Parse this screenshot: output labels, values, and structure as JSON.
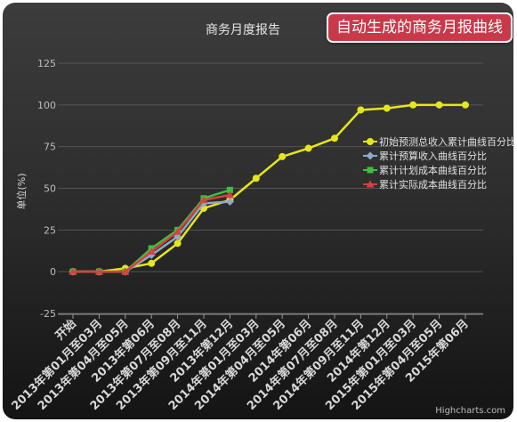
{
  "badge": {
    "text": "自动生成的商务月报曲线"
  },
  "credit": "Highcharts.com",
  "colors": {
    "accent": "#c8394a",
    "initial": "#e6e61a",
    "budget": "#8fa9c9",
    "plan": "#3fbf3f",
    "actual": "#d94040"
  },
  "chart_data": {
    "type": "line",
    "title": "商务月度报告",
    "xlabel": "",
    "ylabel": "单位(%)",
    "ylim": [
      -25,
      125
    ],
    "yticks": [
      -25,
      0,
      25,
      50,
      75,
      100,
      125
    ],
    "grid": true,
    "legend_position": "right",
    "categories": [
      "开始",
      "2013年第01月至03月",
      "2013年第04月至05月",
      "2013年第06月",
      "2013年第07月至08月",
      "2013年第09月至11月",
      "2013年第12月",
      "2014年第01月至03月",
      "2014年第04月至05月",
      "2014年第06月",
      "2014年第07月至08月",
      "2014年第09月至11月",
      "2014年第12月",
      "2015年第01月至03月",
      "2015年第04月至05月",
      "2015年第06月"
    ],
    "series": [
      {
        "name": "初始预测总收入累计曲线百分比",
        "color": "#e6e61a",
        "marker": "circle",
        "values": [
          0,
          0,
          2,
          5,
          17,
          38,
          43,
          56,
          69,
          74,
          80,
          97,
          98,
          100,
          100,
          100
        ]
      },
      {
        "name": "累计预算收入曲线百分比",
        "color": "#8fa9c9",
        "marker": "diamond",
        "values": [
          0,
          0,
          0,
          10,
          21,
          41,
          42,
          null,
          null,
          null,
          null,
          null,
          null,
          null,
          null,
          null
        ]
      },
      {
        "name": "累计计划成本曲线百分比",
        "color": "#3fbf3f",
        "marker": "square",
        "values": [
          0,
          0,
          0,
          14,
          25,
          44,
          49,
          null,
          null,
          null,
          null,
          null,
          null,
          null,
          null,
          null
        ]
      },
      {
        "name": "累计实际成本曲线百分比",
        "color": "#d94040",
        "marker": "triangle",
        "values": [
          0,
          0,
          0,
          12,
          24,
          43,
          46,
          null,
          null,
          null,
          null,
          null,
          null,
          null,
          null,
          null
        ]
      }
    ]
  }
}
